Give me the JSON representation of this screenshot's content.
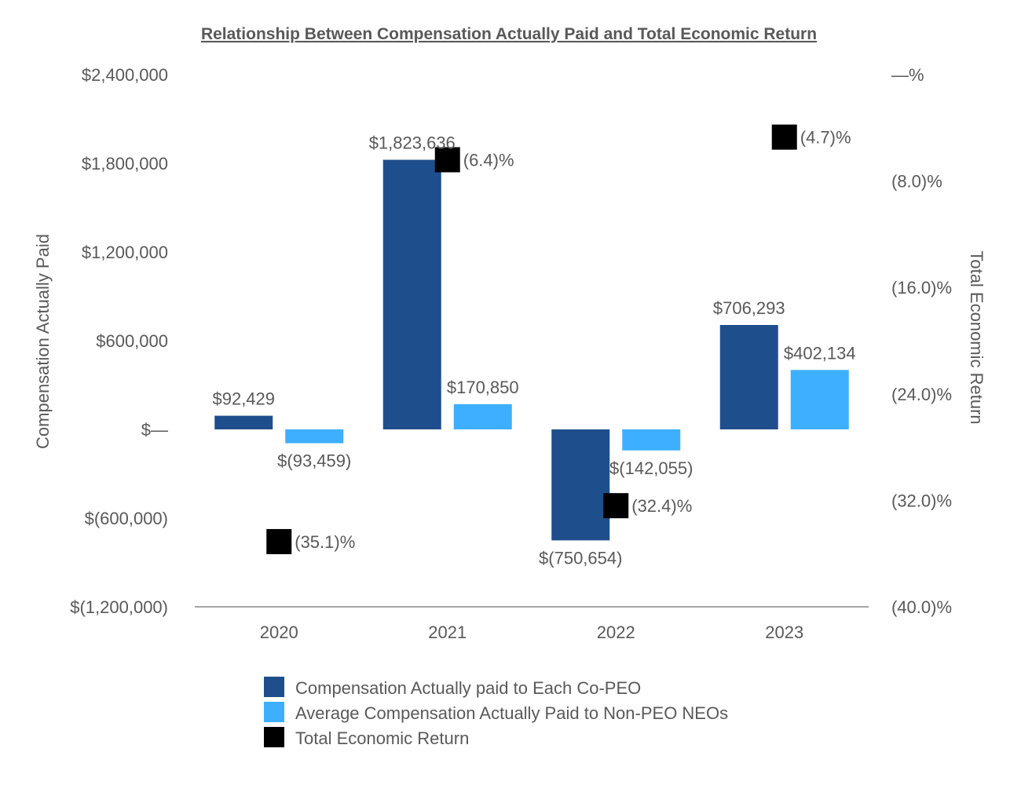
{
  "chart_data": {
    "type": "bar",
    "title": "Relationship Between Compensation Actually Paid and Total Economic Return",
    "categories": [
      "2020",
      "2021",
      "2022",
      "2023"
    ],
    "ylabel": "Compensation Actually Paid",
    "y2label": "Total Economic Return",
    "ylim": [
      -1200000,
      2400000
    ],
    "y2lim": [
      -40.0,
      0.0
    ],
    "yticks": [
      {
        "value": 2400000,
        "label": "$2,400,000"
      },
      {
        "value": 1800000,
        "label": "$1,800,000"
      },
      {
        "value": 1200000,
        "label": "$1,200,000"
      },
      {
        "value": 600000,
        "label": "$600,000"
      },
      {
        "value": 0,
        "label": "$—"
      },
      {
        "value": -600000,
        "label": "$(600,000)"
      },
      {
        "value": -1200000,
        "label": "$(1,200,000)"
      }
    ],
    "y2ticks": [
      {
        "value": 0,
        "label": "—%"
      },
      {
        "value": -8.0,
        "label": "(8.0)%"
      },
      {
        "value": -16.0,
        "label": "(16.0)%"
      },
      {
        "value": -24.0,
        "label": "(24.0)%"
      },
      {
        "value": -32.0,
        "label": "(32.0)%"
      },
      {
        "value": -40.0,
        "label": "(40.0)%"
      }
    ],
    "series": [
      {
        "name": "Compensation Actually paid to Each Co-PEO",
        "kind": "bar",
        "axis": "left",
        "color": "#1F4E8C",
        "values": [
          92429,
          1823636,
          -750654,
          706293
        ],
        "labels": [
          "$92,429",
          "$1,823,636",
          "$(750,654)",
          "$706,293"
        ]
      },
      {
        "name": "Average Compensation Actually Paid to Non-PEO NEOs",
        "kind": "bar",
        "axis": "left",
        "color": "#3EAFFF",
        "values": [
          -93459,
          170850,
          -142055,
          402134
        ],
        "labels": [
          "$(93,459)",
          "$170,850",
          "$(142,055)",
          "$402,134"
        ]
      },
      {
        "name": "Total Economic Return",
        "kind": "marker",
        "axis": "right",
        "color": "#000000",
        "values": [
          -35.1,
          -6.4,
          -32.4,
          -4.7
        ],
        "labels": [
          "(35.1)%",
          "(6.4)%",
          "(32.4)%",
          "(4.7)%"
        ]
      }
    ],
    "legend": "bottom"
  }
}
